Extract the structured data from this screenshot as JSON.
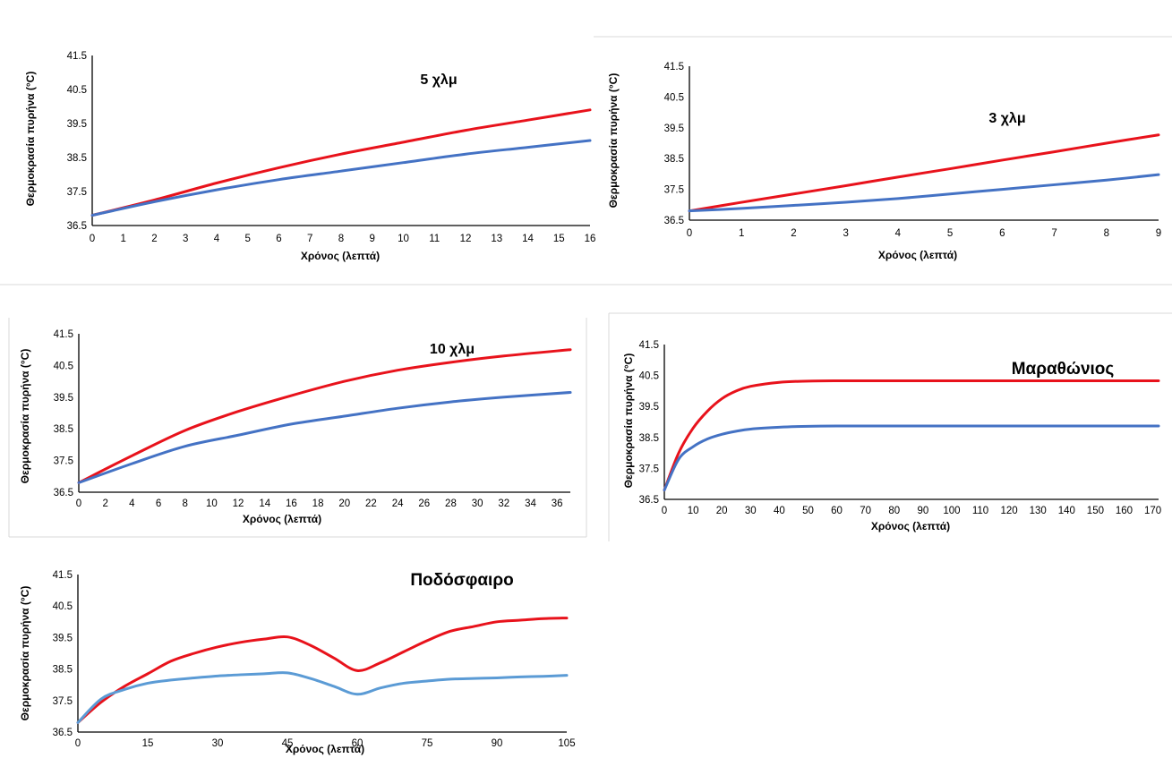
{
  "chart_data": [
    {
      "type": "line",
      "title": "5 χλμ",
      "xlabel": "Χρόνος (λεπτά)",
      "ylabel": "Θερμοκρασία πυρήνα (°C)",
      "x_ticks": [
        "0",
        "1",
        "2",
        "3",
        "4",
        "5",
        "6",
        "7",
        "8",
        "9",
        "10",
        "11",
        "12",
        "13",
        "14",
        "15",
        "16"
      ],
      "y_ticks": [
        "36.5",
        "37.5",
        "38.5",
        "39.5",
        "40.5",
        "41.5"
      ],
      "xlim": [
        0,
        16
      ],
      "ylim": [
        36.5,
        41.5
      ],
      "series": [
        {
          "color": "#e8121b",
          "x": [
            0,
            2,
            4,
            6,
            8,
            10,
            12,
            14,
            16
          ],
          "values": [
            36.8,
            37.25,
            37.75,
            38.2,
            38.6,
            38.95,
            39.3,
            39.6,
            39.9
          ]
        },
        {
          "color": "#4472c4",
          "x": [
            0,
            2,
            4,
            6,
            8,
            10,
            12,
            14,
            16
          ],
          "values": [
            36.8,
            37.2,
            37.55,
            37.85,
            38.1,
            38.35,
            38.6,
            38.8,
            39.0
          ]
        }
      ]
    },
    {
      "type": "line",
      "title": "3 χλμ",
      "xlabel": "Χρόνος (λεπτά)",
      "ylabel": "Θερμοκρασία πυρήνα (°C)",
      "x_ticks": [
        "0",
        "1",
        "2",
        "3",
        "4",
        "5",
        "6",
        "7",
        "8",
        "9"
      ],
      "y_ticks": [
        "36.5",
        "37.5",
        "38.5",
        "39.5",
        "40.5",
        "41.5"
      ],
      "xlim": [
        0,
        9
      ],
      "ylim": [
        36.5,
        41.5
      ],
      "series": [
        {
          "color": "#e8121b",
          "x": [
            0,
            1,
            2,
            3,
            4,
            5,
            6,
            7,
            8,
            9
          ],
          "values": [
            36.8,
            37.08,
            37.35,
            37.62,
            37.9,
            38.17,
            38.45,
            38.72,
            39.0,
            39.27
          ]
        },
        {
          "color": "#4472c4",
          "x": [
            0,
            1,
            2,
            3,
            4,
            5,
            6,
            7,
            8,
            9
          ],
          "values": [
            36.8,
            36.88,
            36.98,
            37.08,
            37.2,
            37.35,
            37.5,
            37.65,
            37.8,
            37.98
          ]
        }
      ]
    },
    {
      "type": "line",
      "title": "10 χλμ",
      "xlabel": "Χρόνος (λεπτά)",
      "ylabel": "Θερμοκρασία πυρήνα (°C)",
      "x_ticks": [
        "0",
        "2",
        "4",
        "6",
        "8",
        "10",
        "12",
        "14",
        "16",
        "18",
        "20",
        "22",
        "24",
        "26",
        "28",
        "30",
        "32",
        "34",
        "36"
      ],
      "y_ticks": [
        "36.5",
        "37.5",
        "38.5",
        "39.5",
        "40.5",
        "41.5"
      ],
      "xlim": [
        0,
        37
      ],
      "ylim": [
        36.5,
        41.5
      ],
      "series": [
        {
          "color": "#e8121b",
          "x": [
            0,
            4,
            8,
            12,
            16,
            20,
            24,
            28,
            32,
            37
          ],
          "values": [
            36.8,
            37.65,
            38.45,
            39.05,
            39.55,
            40.0,
            40.35,
            40.6,
            40.8,
            41.0
          ]
        },
        {
          "color": "#4472c4",
          "x": [
            0,
            4,
            8,
            12,
            16,
            20,
            24,
            28,
            32,
            37
          ],
          "values": [
            36.8,
            37.4,
            37.95,
            38.3,
            38.65,
            38.9,
            39.15,
            39.35,
            39.5,
            39.65
          ]
        }
      ]
    },
    {
      "type": "line",
      "title": "Μαραθώνιος",
      "xlabel": "Χρόνος (λεπτά)",
      "ylabel": "Θερμοκρασία πυρήνα (°C)",
      "x_ticks": [
        "0",
        "10",
        "20",
        "30",
        "40",
        "50",
        "60",
        "70",
        "80",
        "90",
        "100",
        "110",
        "120",
        "130",
        "140",
        "150",
        "160",
        "170"
      ],
      "y_ticks": [
        "36.5",
        "37.5",
        "38.5",
        "39.5",
        "40.5",
        "41.5"
      ],
      "xlim": [
        0,
        172
      ],
      "ylim": [
        36.5,
        41.5
      ],
      "series": [
        {
          "color": "#e8121b",
          "x": [
            0,
            5,
            10,
            15,
            20,
            25,
            30,
            40,
            50,
            60,
            80,
            100,
            172
          ],
          "values": [
            36.8,
            38.0,
            38.8,
            39.35,
            39.75,
            40.0,
            40.15,
            40.28,
            40.32,
            40.33,
            40.33,
            40.33,
            40.33
          ]
        },
        {
          "color": "#4472c4",
          "x": [
            0,
            5,
            10,
            15,
            20,
            25,
            30,
            40,
            50,
            60,
            80,
            100,
            172
          ],
          "values": [
            36.8,
            37.8,
            38.2,
            38.45,
            38.6,
            38.7,
            38.77,
            38.83,
            38.86,
            38.87,
            38.87,
            38.87,
            38.87
          ]
        }
      ]
    },
    {
      "type": "line",
      "title": "Ποδόσφαιρο",
      "xlabel": "Χρόνος (λεπτά)",
      "ylabel": "Θερμοκρασία πυρήνα (°C)",
      "x_ticks": [
        "0",
        "15",
        "30",
        "45",
        "60",
        "75",
        "90",
        "105"
      ],
      "y_ticks": [
        "36.5",
        "37.5",
        "38.5",
        "39.5",
        "40.5",
        "41.5"
      ],
      "xlim": [
        0,
        105
      ],
      "ylim": [
        36.5,
        41.5
      ],
      "series": [
        {
          "color": "#e8121b",
          "x": [
            0,
            5,
            10,
            15,
            20,
            25,
            30,
            35,
            40,
            45,
            50,
            55,
            60,
            65,
            70,
            75,
            80,
            85,
            90,
            95,
            100,
            105
          ],
          "values": [
            36.8,
            37.45,
            37.95,
            38.35,
            38.75,
            39.0,
            39.2,
            39.35,
            39.45,
            39.52,
            39.25,
            38.85,
            38.45,
            38.7,
            39.05,
            39.4,
            39.7,
            39.85,
            40.0,
            40.05,
            40.1,
            40.12
          ]
        },
        {
          "color": "#5b9bd5",
          "x": [
            0,
            5,
            10,
            15,
            20,
            25,
            30,
            35,
            40,
            45,
            50,
            55,
            60,
            65,
            70,
            75,
            80,
            85,
            90,
            95,
            100,
            105
          ],
          "values": [
            36.8,
            37.55,
            37.85,
            38.05,
            38.15,
            38.22,
            38.28,
            38.32,
            38.35,
            38.38,
            38.2,
            37.95,
            37.7,
            37.9,
            38.05,
            38.12,
            38.18,
            38.2,
            38.22,
            38.25,
            38.27,
            38.3
          ]
        }
      ]
    }
  ]
}
